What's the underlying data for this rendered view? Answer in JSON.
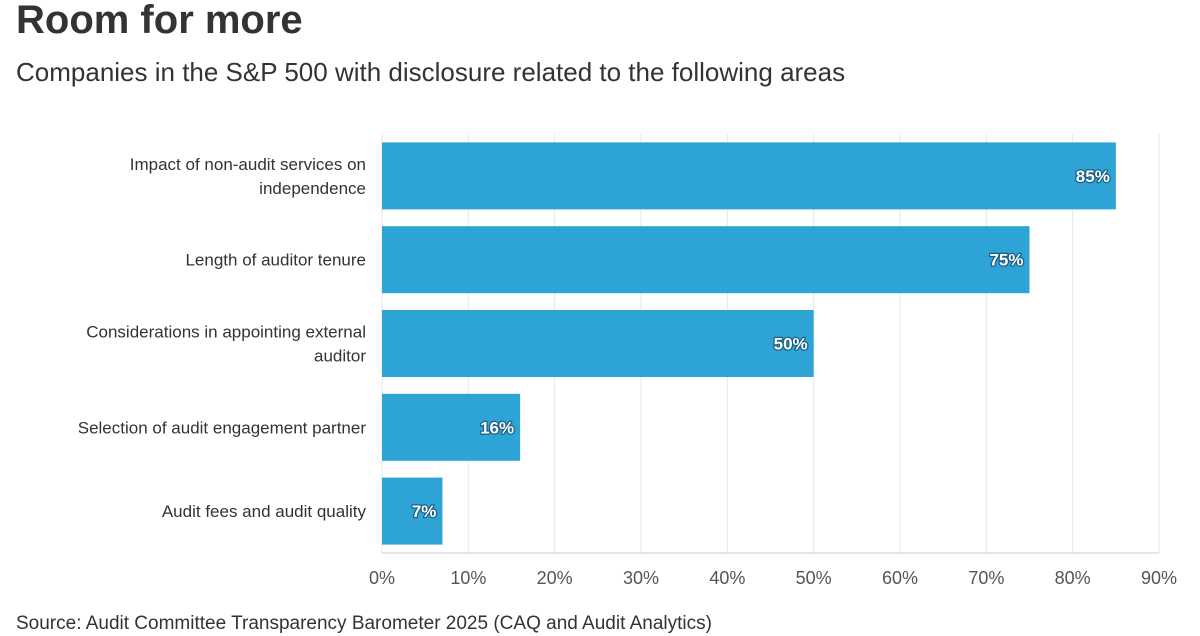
{
  "chart_data": {
    "type": "bar",
    "orientation": "horizontal",
    "title": "Room for more",
    "subtitle": "Companies in the S&P 500 with disclosure related to the following areas",
    "categories": [
      [
        "Impact of non-audit services on",
        "independence"
      ],
      [
        "Length of auditor tenure"
      ],
      [
        "Considerations in appointing external",
        "auditor"
      ],
      [
        "Selection of audit engagement partner"
      ],
      [
        "Audit fees and audit quality"
      ]
    ],
    "values": [
      85,
      75,
      50,
      16,
      7
    ],
    "data_labels": [
      "85%",
      "75%",
      "50%",
      "16%",
      "7%"
    ],
    "xlim": [
      0,
      90
    ],
    "x_ticks": [
      0,
      10,
      20,
      30,
      40,
      50,
      60,
      70,
      80,
      90
    ],
    "x_tick_labels": [
      "0%",
      "10%",
      "20%",
      "30%",
      "40%",
      "50%",
      "60%",
      "70%",
      "80%",
      "90%"
    ],
    "grid": true,
    "bar_color": "#2ea3d6",
    "grid_color": "#e6e6e6",
    "source": "Source: Audit Committee Transparency Barometer 2025 (CAQ and Audit Analytics)"
  }
}
